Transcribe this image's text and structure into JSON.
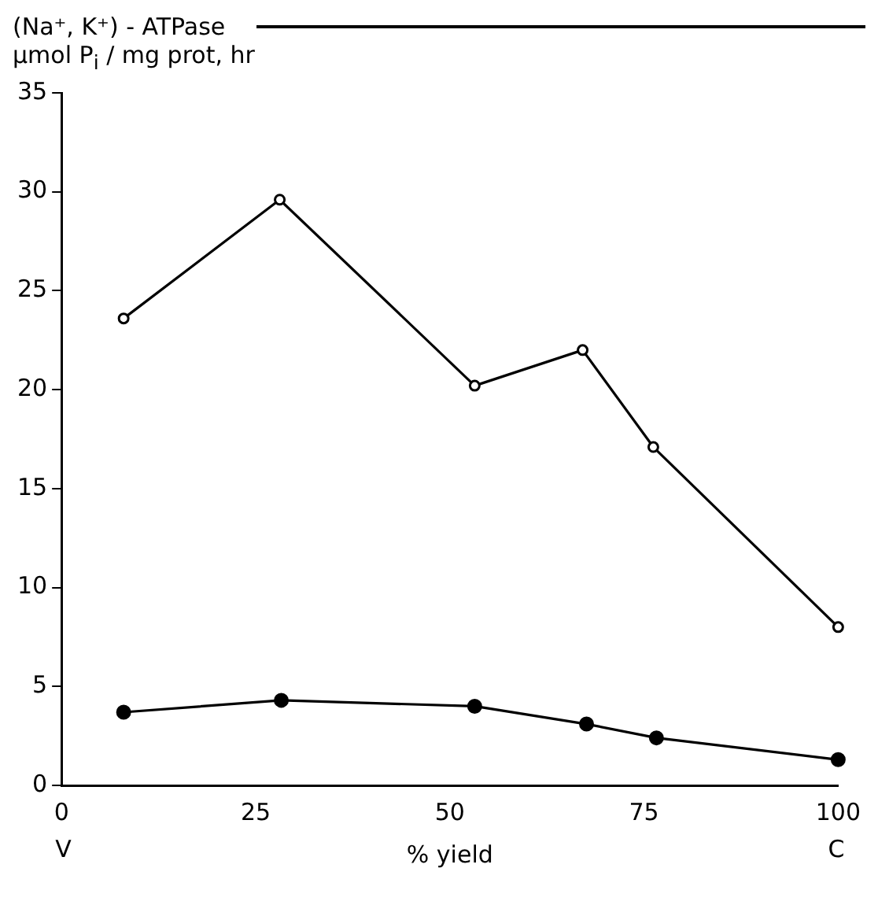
{
  "chart_data": {
    "type": "line",
    "title": "(Na⁺, K⁺) - ATPase",
    "ylabel": "μmol P$_{i}$ / mg prot, hr",
    "xlabel": "% yield",
    "xlim": [
      0,
      100
    ],
    "xticks": [
      0,
      25,
      50,
      75,
      100
    ],
    "ylim": [
      0,
      35
    ],
    "yticks": [
      0,
      5,
      10,
      15,
      20,
      25,
      30,
      35
    ],
    "grid": false,
    "legend": false,
    "line_style": "solid",
    "annotations": [
      "V",
      "C"
    ],
    "series": [
      {
        "color": "#000000",
        "marker": "circle",
        "x": [
          8,
          28.1,
          53.2,
          67.1,
          76.2,
          100
        ],
        "values": [
          23.6,
          29.6,
          20.2,
          22.0,
          17.1,
          8.0
        ]
      },
      {
        "color": "#000000",
        "marker": "circle",
        "x": [
          8,
          28.3,
          53.2,
          67.6,
          76.6,
          100
        ],
        "values": [
          3.7,
          4.3,
          4.0,
          3.1,
          2.4,
          1.3
        ]
      }
    ]
  }
}
